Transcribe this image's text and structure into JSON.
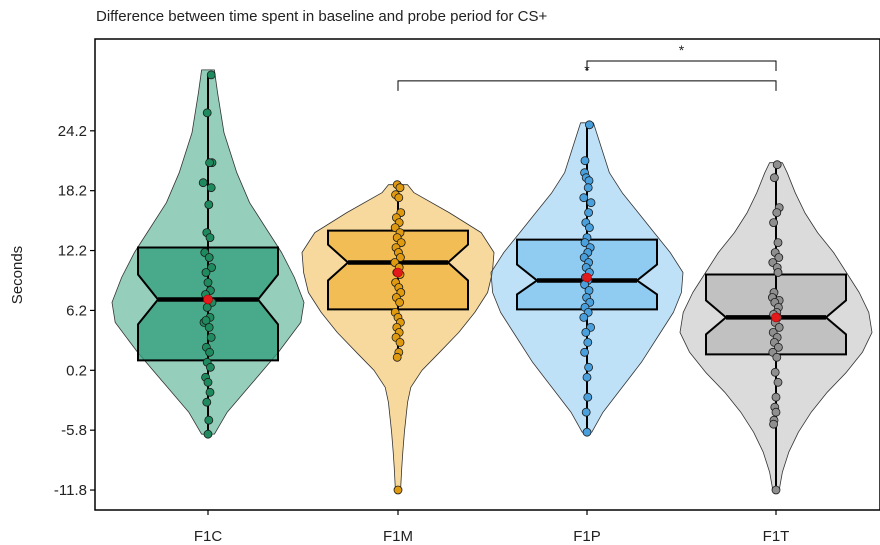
{
  "chart_data": {
    "type": "violin",
    "title": "Difference between time spent in baseline and probe period for CS+",
    "xlabel": "",
    "ylabel": "Seconds",
    "categories": [
      "F1C",
      "F1M",
      "F1P",
      "F1T"
    ],
    "y_ticks": [
      24.2,
      18.2,
      12.2,
      6.2,
      0.2,
      -5.8,
      -11.8
    ],
    "y_tick_labels": [
      "24.2",
      "18.2",
      "12.2",
      "6.2",
      "0.2",
      "-5.8",
      "-11.8"
    ],
    "ylim": [
      -13.8,
      33.4
    ],
    "grid": false,
    "legend": "none",
    "series": [
      {
        "category": "F1C",
        "color": "#2e9e7a",
        "point_color": "#1e8a5e",
        "violin": [
          [
            -6.2,
            0.2
          ],
          [
            -4,
            0.6
          ],
          [
            -1,
            1.4
          ],
          [
            2,
            2.2
          ],
          [
            5,
            2.9
          ],
          [
            7,
            3.0
          ],
          [
            9.5,
            2.7
          ],
          [
            12,
            2.3
          ],
          [
            14,
            1.9
          ],
          [
            17,
            1.3
          ],
          [
            20,
            0.9
          ],
          [
            24,
            0.5
          ],
          [
            28,
            0.3
          ],
          [
            30.3,
            0.2
          ]
        ],
        "box": {
          "q1": 1.2,
          "median": 7.3,
          "q3": 12.5,
          "notch_low": 4.8,
          "notch_high": 9.8
        },
        "whisker": [
          -6.2,
          29.8
        ],
        "mean": 7.3,
        "points": [
          [
            0.08,
            29.8
          ],
          [
            -0.02,
            26
          ],
          [
            0.1,
            21
          ],
          [
            0.04,
            21
          ],
          [
            -0.12,
            19
          ],
          [
            0.08,
            18.5
          ],
          [
            0.02,
            16.8
          ],
          [
            -0.03,
            14
          ],
          [
            0.05,
            13.5
          ],
          [
            -0.08,
            12
          ],
          [
            0.03,
            11.5
          ],
          [
            0.09,
            10.5
          ],
          [
            -0.05,
            10
          ],
          [
            0.0,
            9
          ],
          [
            0.06,
            8.2
          ],
          [
            -0.06,
            7.8
          ],
          [
            0.1,
            7
          ],
          [
            -0.02,
            6.5
          ],
          [
            0.05,
            5.5
          ],
          [
            -0.1,
            5.0
          ],
          [
            -0.05,
            5.2
          ],
          [
            0.03,
            4.5
          ],
          [
            0.08,
            3.5
          ],
          [
            -0.04,
            2.5
          ],
          [
            0.04,
            2
          ],
          [
            -0.02,
            1
          ],
          [
            0.06,
            0.5
          ],
          [
            -0.06,
            -0.5
          ],
          [
            0.0,
            -1
          ],
          [
            0.05,
            -2
          ],
          [
            -0.03,
            -3
          ],
          [
            0.02,
            -4.8
          ],
          [
            0.0,
            -6.2
          ]
        ]
      },
      {
        "category": "F1M",
        "color": "#f0b33c",
        "point_color": "#e09a10",
        "violin": [
          [
            -11.8,
            0.08
          ],
          [
            -9.5,
            0.12
          ],
          [
            -8,
            0.15
          ],
          [
            -6,
            0.2
          ],
          [
            -3,
            0.3
          ],
          [
            -1.5,
            0.4
          ],
          [
            0.2,
            0.75
          ],
          [
            2,
            1.3
          ],
          [
            4,
            1.9
          ],
          [
            6,
            2.4
          ],
          [
            8,
            2.8
          ],
          [
            10,
            2.95
          ],
          [
            12,
            3.0
          ],
          [
            14,
            2.6
          ],
          [
            16,
            1.6
          ],
          [
            18,
            0.5
          ],
          [
            18.8,
            0.3
          ]
        ],
        "box": {
          "q1": 6.3,
          "median": 11.0,
          "q3": 14.2,
          "notch_low": 9.2,
          "notch_high": 12.8
        },
        "whisker": [
          1.5,
          18.8
        ],
        "mean": 10.0,
        "points": [
          [
            -0.02,
            18.8
          ],
          [
            0.05,
            18.5
          ],
          [
            -0.06,
            17.8
          ],
          [
            0.02,
            17.5
          ],
          [
            0.07,
            16
          ],
          [
            -0.04,
            15.5
          ],
          [
            0.03,
            15
          ],
          [
            -0.07,
            14.5
          ],
          [
            0.05,
            14
          ],
          [
            -0.02,
            13.5
          ],
          [
            0.08,
            13
          ],
          [
            -0.05,
            12.5
          ],
          [
            0.01,
            12
          ],
          [
            0.06,
            11.5
          ],
          [
            -0.08,
            11
          ],
          [
            0.03,
            10.5
          ],
          [
            -0.03,
            10
          ],
          [
            0.05,
            9.8
          ],
          [
            -0.06,
            9
          ],
          [
            0.02,
            8.5
          ],
          [
            0.07,
            8
          ],
          [
            -0.04,
            7.5
          ],
          [
            0.04,
            7
          ],
          [
            -0.07,
            6
          ],
          [
            0.0,
            5.5
          ],
          [
            0.06,
            5
          ],
          [
            -0.03,
            4.5
          ],
          [
            0.03,
            4
          ],
          [
            -0.05,
            3.5
          ],
          [
            0.05,
            3
          ],
          [
            0.02,
            2
          ],
          [
            -0.02,
            1.5
          ],
          [
            0.0,
            -11.8
          ]
        ]
      },
      {
        "category": "F1P",
        "color": "#80c4ef",
        "point_color": "#4aa0dc",
        "violin": [
          [
            -6.0,
            0.15
          ],
          [
            -4,
            0.5
          ],
          [
            -1.5,
            1.1
          ],
          [
            1,
            1.7
          ],
          [
            4,
            2.3
          ],
          [
            6,
            2.7
          ],
          [
            8,
            2.95
          ],
          [
            10,
            3.0
          ],
          [
            12,
            2.6
          ],
          [
            14,
            2.1
          ],
          [
            16,
            1.6
          ],
          [
            18,
            1.1
          ],
          [
            20,
            0.7
          ],
          [
            22,
            0.5
          ],
          [
            24,
            0.3
          ],
          [
            25,
            0.2
          ]
        ],
        "box": {
          "q1": 6.3,
          "median": 9.2,
          "q3": 13.3,
          "notch_low": 7.8,
          "notch_high": 10.8
        },
        "whisker": [
          -6.0,
          24.8
        ],
        "mean": 9.5,
        "points": [
          [
            0.06,
            24.8
          ],
          [
            -0.05,
            21.2
          ],
          [
            -0.06,
            20
          ],
          [
            -0.02,
            19.5
          ],
          [
            0.05,
            19.2
          ],
          [
            0.03,
            18.5
          ],
          [
            -0.08,
            17.5
          ],
          [
            0.1,
            17
          ],
          [
            0.04,
            16
          ],
          [
            -0.03,
            15
          ],
          [
            0.06,
            14.5
          ],
          [
            0.0,
            13.5
          ],
          [
            -0.05,
            13
          ],
          [
            0.08,
            12.5
          ],
          [
            0.02,
            12
          ],
          [
            -0.07,
            11.5
          ],
          [
            0.04,
            11
          ],
          [
            -0.02,
            10.5
          ],
          [
            0.06,
            10
          ],
          [
            -0.04,
            9.5
          ],
          [
            0.02,
            9.2
          ],
          [
            -0.06,
            8.8
          ],
          [
            0.05,
            8.2
          ],
          [
            -0.01,
            7.5
          ],
          [
            0.07,
            7
          ],
          [
            -0.05,
            6.5
          ],
          [
            0.03,
            6
          ],
          [
            -0.08,
            5.5
          ],
          [
            0.09,
            4.5
          ],
          [
            -0.03,
            4
          ],
          [
            0.02,
            3
          ],
          [
            -0.06,
            2
          ],
          [
            0.04,
            0.5
          ],
          [
            0.0,
            -0.5
          ],
          [
            0.02,
            -2.5
          ],
          [
            -0.02,
            -4
          ],
          [
            0.0,
            -6.0
          ]
        ]
      },
      {
        "category": "F1T",
        "color": "#b8b8b8",
        "point_color": "#8f8f8f",
        "violin": [
          [
            -11.8,
            0.1
          ],
          [
            -10,
            0.2
          ],
          [
            -8,
            0.4
          ],
          [
            -6,
            0.7
          ],
          [
            -4,
            1.1
          ],
          [
            -2,
            1.6
          ],
          [
            0,
            2.2
          ],
          [
            2,
            2.7
          ],
          [
            4,
            3.0
          ],
          [
            6,
            2.9
          ],
          [
            8,
            2.6
          ],
          [
            10,
            2.2
          ],
          [
            12,
            1.8
          ],
          [
            14,
            1.3
          ],
          [
            16,
            0.9
          ],
          [
            18,
            0.6
          ],
          [
            20,
            0.35
          ],
          [
            21,
            0.2
          ]
        ],
        "box": {
          "q1": 1.8,
          "median": 5.5,
          "q3": 9.8,
          "notch_low": 3.8,
          "notch_high": 7.2
        },
        "whisker": [
          -11.8,
          20.8
        ],
        "mean": 5.5,
        "points": [
          [
            0.03,
            20.8
          ],
          [
            -0.04,
            19.5
          ],
          [
            0.08,
            16.5
          ],
          [
            0.02,
            16
          ],
          [
            -0.06,
            15
          ],
          [
            0.05,
            13
          ],
          [
            -0.02,
            12
          ],
          [
            0.07,
            11.5
          ],
          [
            -0.08,
            11
          ],
          [
            0.03,
            10.5
          ],
          [
            0.05,
            10
          ],
          [
            -0.05,
            8
          ],
          [
            -0.09,
            7.5
          ],
          [
            0.08,
            7.2
          ],
          [
            -0.03,
            7
          ],
          [
            0.06,
            6.5
          ],
          [
            0.02,
            6
          ],
          [
            -0.06,
            5.8
          ],
          [
            0.04,
            5.5
          ],
          [
            -0.02,
            5
          ],
          [
            0.08,
            4.5
          ],
          [
            -0.07,
            4
          ],
          [
            0.03,
            3.5
          ],
          [
            -0.04,
            3
          ],
          [
            0.06,
            2.5
          ],
          [
            -0.08,
            2
          ],
          [
            0.02,
            1.5
          ],
          [
            -0.02,
            0
          ],
          [
            0.05,
            -1
          ],
          [
            0.0,
            -2.5
          ],
          [
            -0.03,
            -3.5
          ],
          [
            0.0,
            -4
          ],
          [
            -0.05,
            -4.8
          ],
          [
            -0.06,
            -5.2
          ],
          [
            0.0,
            -11.8
          ]
        ]
      }
    ],
    "annotations": [
      {
        "from": "F1M",
        "to": "F1T",
        "y": 29.2,
        "label": "*"
      },
      {
        "from": "F1P",
        "to": "F1T",
        "y": 31.2,
        "label": "*"
      }
    ],
    "mean_marker_color": "#e31a1c"
  }
}
